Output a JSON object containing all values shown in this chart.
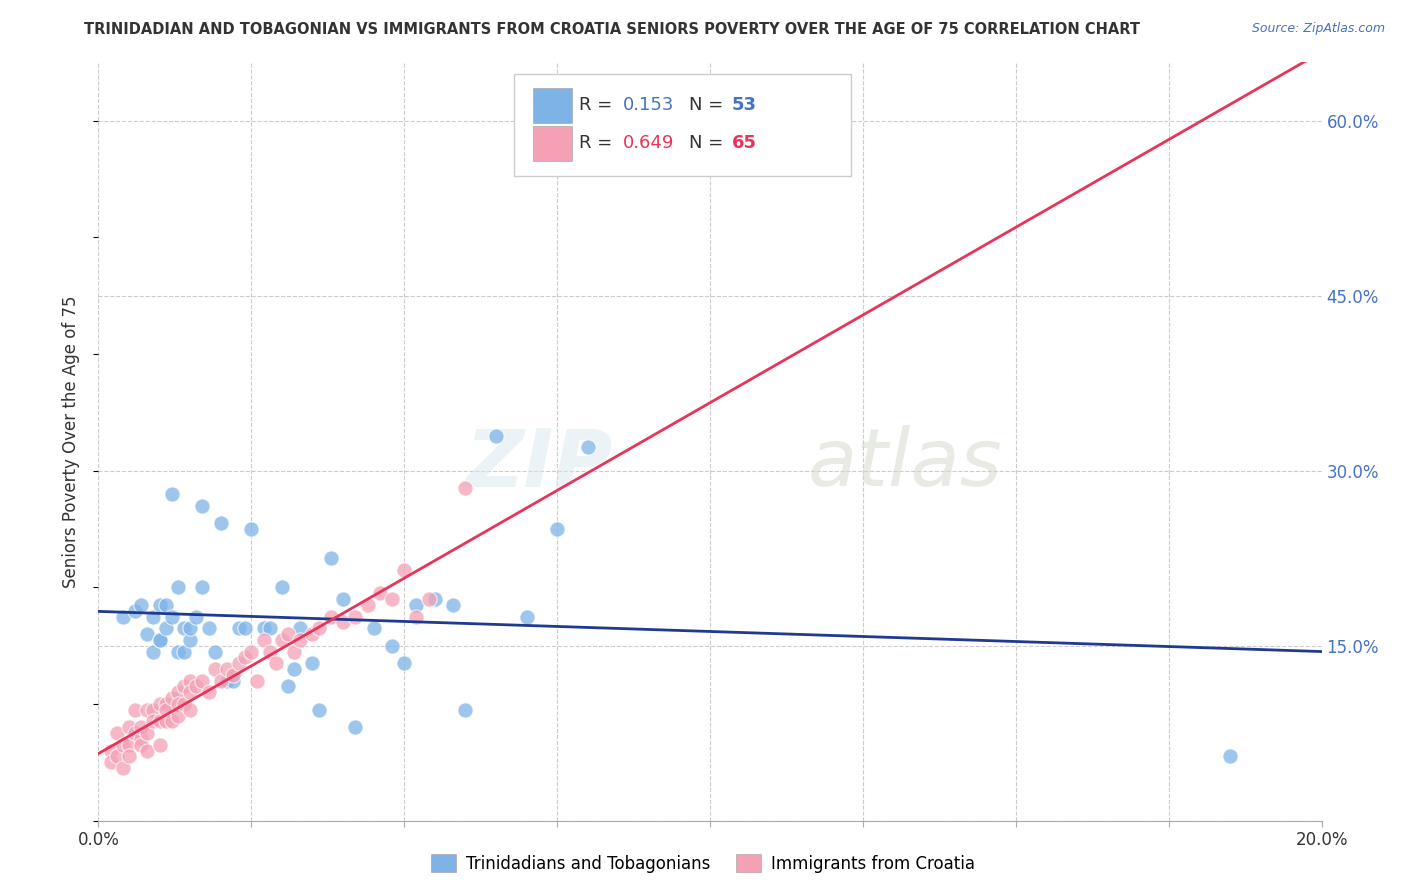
{
  "title": "TRINIDADIAN AND TOBAGONIAN VS IMMIGRANTS FROM CROATIA SENIORS POVERTY OVER THE AGE OF 75 CORRELATION CHART",
  "source": "Source: ZipAtlas.com",
  "ylabel": "Seniors Poverty Over the Age of 75",
  "xlim": [
    0.0,
    0.2
  ],
  "ylim": [
    0.0,
    0.65
  ],
  "x_ticks": [
    0.0,
    0.025,
    0.05,
    0.075,
    0.1,
    0.125,
    0.15,
    0.175,
    0.2
  ],
  "y_ticks": [
    0.0,
    0.15,
    0.3,
    0.45,
    0.6
  ],
  "y_tick_labels_right": [
    "",
    "15.0%",
    "30.0%",
    "45.0%",
    "60.0%"
  ],
  "grid_color": "#cccccc",
  "background_color": "#ffffff",
  "blue_color": "#7EB3E8",
  "pink_color": "#F4A0B5",
  "blue_line_color": "#1F3A8F",
  "pink_line_color": "#E8345A",
  "R_blue": 0.153,
  "N_blue": 53,
  "R_pink": 0.649,
  "N_pink": 65,
  "legend1_label": "Trinidadians and Tobagonians",
  "legend2_label": "Immigrants from Croatia",
  "watermark": "ZIPatlas",
  "blue_scatter_x": [
    0.004,
    0.006,
    0.007,
    0.008,
    0.009,
    0.009,
    0.01,
    0.01,
    0.01,
    0.011,
    0.011,
    0.012,
    0.012,
    0.013,
    0.013,
    0.014,
    0.014,
    0.015,
    0.015,
    0.016,
    0.017,
    0.017,
    0.018,
    0.019,
    0.02,
    0.021,
    0.022,
    0.023,
    0.024,
    0.025,
    0.027,
    0.028,
    0.03,
    0.031,
    0.032,
    0.033,
    0.035,
    0.036,
    0.038,
    0.04,
    0.042,
    0.045,
    0.048,
    0.05,
    0.052,
    0.055,
    0.058,
    0.06,
    0.065,
    0.07,
    0.075,
    0.08,
    0.185
  ],
  "blue_scatter_y": [
    0.175,
    0.18,
    0.185,
    0.16,
    0.145,
    0.175,
    0.155,
    0.185,
    0.155,
    0.165,
    0.185,
    0.175,
    0.28,
    0.2,
    0.145,
    0.145,
    0.165,
    0.155,
    0.165,
    0.175,
    0.2,
    0.27,
    0.165,
    0.145,
    0.255,
    0.12,
    0.12,
    0.165,
    0.165,
    0.25,
    0.165,
    0.165,
    0.2,
    0.115,
    0.13,
    0.165,
    0.135,
    0.095,
    0.225,
    0.19,
    0.08,
    0.165,
    0.15,
    0.135,
    0.185,
    0.19,
    0.185,
    0.095,
    0.33,
    0.175,
    0.25,
    0.32,
    0.055
  ],
  "pink_scatter_x": [
    0.002,
    0.002,
    0.003,
    0.003,
    0.004,
    0.004,
    0.005,
    0.005,
    0.005,
    0.006,
    0.006,
    0.007,
    0.007,
    0.007,
    0.008,
    0.008,
    0.008,
    0.009,
    0.009,
    0.01,
    0.01,
    0.01,
    0.011,
    0.011,
    0.011,
    0.012,
    0.012,
    0.013,
    0.013,
    0.013,
    0.014,
    0.014,
    0.015,
    0.015,
    0.015,
    0.016,
    0.017,
    0.018,
    0.019,
    0.02,
    0.021,
    0.022,
    0.023,
    0.024,
    0.025,
    0.026,
    0.027,
    0.028,
    0.029,
    0.03,
    0.031,
    0.032,
    0.033,
    0.035,
    0.036,
    0.038,
    0.04,
    0.042,
    0.044,
    0.046,
    0.048,
    0.05,
    0.052,
    0.054,
    0.06
  ],
  "pink_scatter_y": [
    0.06,
    0.05,
    0.075,
    0.055,
    0.065,
    0.045,
    0.08,
    0.065,
    0.055,
    0.075,
    0.095,
    0.07,
    0.08,
    0.065,
    0.095,
    0.075,
    0.06,
    0.095,
    0.085,
    0.1,
    0.085,
    0.065,
    0.1,
    0.085,
    0.095,
    0.105,
    0.085,
    0.11,
    0.1,
    0.09,
    0.115,
    0.1,
    0.12,
    0.11,
    0.095,
    0.115,
    0.12,
    0.11,
    0.13,
    0.12,
    0.13,
    0.125,
    0.135,
    0.14,
    0.145,
    0.12,
    0.155,
    0.145,
    0.135,
    0.155,
    0.16,
    0.145,
    0.155,
    0.16,
    0.165,
    0.175,
    0.17,
    0.175,
    0.185,
    0.195,
    0.19,
    0.215,
    0.175,
    0.19,
    0.285
  ]
}
